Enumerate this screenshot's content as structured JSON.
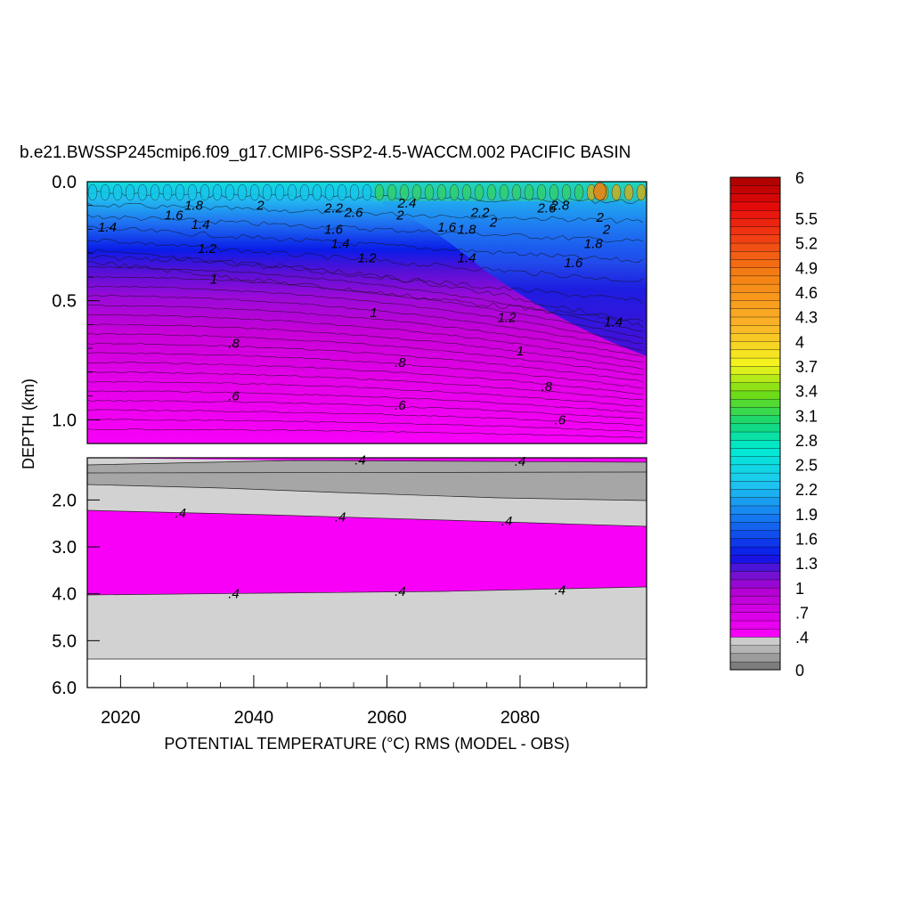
{
  "chart_data": {
    "type": "heatmap",
    "title": "b.e21.BWSSP245cmip6.f09_g17.CMIP6-SSP2-4.5-WACCM.002 PACIFIC BASIN",
    "xlabel": "POTENTIAL TEMPERATURE (°C) RMS (MODEL - OBS)",
    "ylabel": "DEPTH (km)",
    "xlim": [
      2015,
      2099
    ],
    "x_ticks": [
      "2020",
      "2040",
      "2060",
      "2080"
    ],
    "x_tick_values": [
      2020,
      2040,
      2060,
      2080
    ],
    "upper_panel": {
      "ylim": [
        0,
        1.1
      ],
      "y_ticks": [
        "0.0",
        "0.5",
        "1.0"
      ],
      "y_tick_values": [
        0,
        0.5,
        1.0
      ]
    },
    "lower_panel": {
      "ylim": [
        1.1,
        6.0
      ],
      "y_ticks": [
        "2.0",
        "3.0",
        "4.0",
        "5.0",
        "6.0"
      ],
      "y_tick_values": [
        2,
        3,
        4,
        5,
        6
      ],
      "data_bottom_km": 5.35
    },
    "colorbar": {
      "min": 0,
      "max": 6,
      "interval": 0.1,
      "labels": [
        "6",
        "5.5",
        "5.2",
        "4.9",
        "4.6",
        "4.3",
        "4",
        "3.7",
        "3.4",
        "3.1",
        "2.8",
        "2.5",
        "2.2",
        "1.9",
        "1.6",
        "1.3",
        "1",
        ".7",
        ".4",
        "0"
      ],
      "label_values": [
        6,
        5.5,
        5.2,
        4.9,
        4.6,
        4.3,
        4,
        3.7,
        3.4,
        3.1,
        2.8,
        2.5,
        2.2,
        1.9,
        1.6,
        1.3,
        1,
        0.7,
        0.4,
        0
      ]
    },
    "contour_labels": [
      {
        "text": "1.4",
        "x": 2018,
        "depth": 0.19
      },
      {
        "text": "1.6",
        "x": 2028,
        "depth": 0.14
      },
      {
        "text": "1.8",
        "x": 2031,
        "depth": 0.1
      },
      {
        "text": "1.4",
        "x": 2032,
        "depth": 0.18
      },
      {
        "text": "2",
        "x": 2041,
        "depth": 0.1
      },
      {
        "text": "1.2",
        "x": 2033,
        "depth": 0.28
      },
      {
        "text": "1",
        "x": 2034,
        "depth": 0.41
      },
      {
        "text": "2.2",
        "x": 2052,
        "depth": 0.11
      },
      {
        "text": "2.6",
        "x": 2055,
        "depth": 0.13
      },
      {
        "text": "1.6",
        "x": 2052,
        "depth": 0.2
      },
      {
        "text": "1.4",
        "x": 2053,
        "depth": 0.26
      },
      {
        "text": "1.2",
        "x": 2057,
        "depth": 0.32
      },
      {
        "text": "2.4",
        "x": 2063,
        "depth": 0.09
      },
      {
        "text": "2",
        "x": 2062,
        "depth": 0.14
      },
      {
        "text": "2.2",
        "x": 2074,
        "depth": 0.13
      },
      {
        "text": "1.6",
        "x": 2069,
        "depth": 0.19
      },
      {
        "text": "1.8",
        "x": 2072,
        "depth": 0.2
      },
      {
        "text": "2",
        "x": 2076,
        "depth": 0.17
      },
      {
        "text": "1.4",
        "x": 2072,
        "depth": 0.32
      },
      {
        "text": "2.6",
        "x": 2084,
        "depth": 0.11
      },
      {
        "text": "2.8",
        "x": 2086,
        "depth": 0.1
      },
      {
        "text": "2",
        "x": 2092,
        "depth": 0.15
      },
      {
        "text": "2",
        "x": 2093,
        "depth": 0.2
      },
      {
        "text": "1.8",
        "x": 2091,
        "depth": 0.26
      },
      {
        "text": "1.6",
        "x": 2088,
        "depth": 0.34
      },
      {
        "text": "1",
        "x": 2058,
        "depth": 0.55
      },
      {
        "text": "1.2",
        "x": 2078,
        "depth": 0.57
      },
      {
        "text": "1.4",
        "x": 2094,
        "depth": 0.59
      },
      {
        "text": "1",
        "x": 2080,
        "depth": 0.71
      },
      {
        "text": ".8",
        "x": 2037,
        "depth": 0.68
      },
      {
        "text": ".8",
        "x": 2062,
        "depth": 0.76
      },
      {
        "text": ".8",
        "x": 2084,
        "depth": 0.86
      },
      {
        "text": ".6",
        "x": 2037,
        "depth": 0.9
      },
      {
        "text": ".6",
        "x": 2062,
        "depth": 0.94
      },
      {
        "text": ".6",
        "x": 2086,
        "depth": 1.0
      },
      {
        "text": ".4",
        "x": 2056,
        "depth": 1.15
      },
      {
        "text": ".4",
        "x": 2080,
        "depth": 1.18
      },
      {
        "text": ".4",
        "x": 2029,
        "depth": 2.28
      },
      {
        "text": ".4",
        "x": 2053,
        "depth": 2.36
      },
      {
        "text": ".4",
        "x": 2078,
        "depth": 2.45
      },
      {
        "text": ".4",
        "x": 2037,
        "depth": 4.0
      },
      {
        "text": ".4",
        "x": 2062,
        "depth": 3.95
      },
      {
        "text": ".4",
        "x": 2086,
        "depth": 3.92
      }
    ],
    "grid": false,
    "legend": "colorbar-right"
  }
}
